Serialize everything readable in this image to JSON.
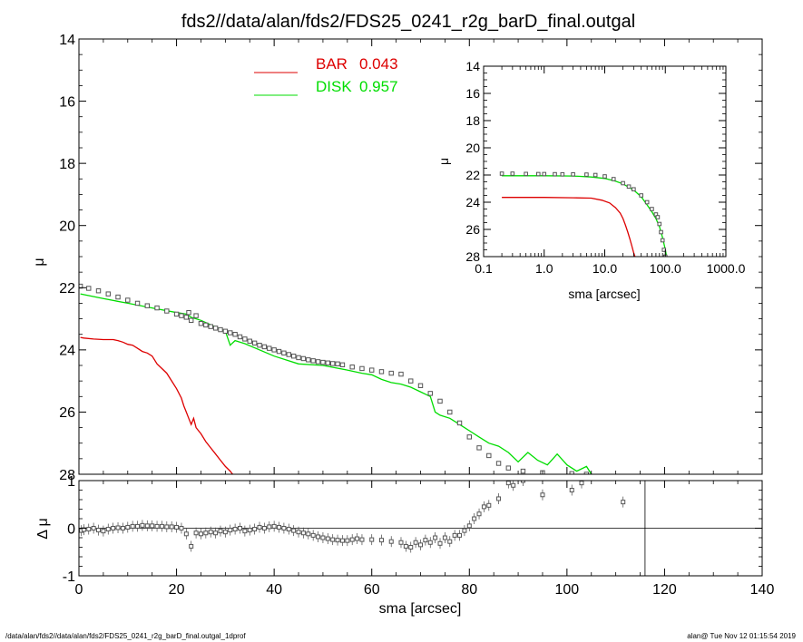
{
  "title": "fds2//data/alan/fds2/FDS25_0241_r2g_barD_final.outgal",
  "footer": {
    "left": "/data/alan/fds2//data/alan/fds2/FDS25_0241_r2g_barD_final.outgal_1dprof",
    "right": "alan@  Tue Nov 12 01:15:54 2019"
  },
  "colors": {
    "bar": "#dd0000",
    "disk": "#00dd00",
    "data": "#555555",
    "axis": "#000000"
  },
  "chart_data": [
    {
      "type": "line",
      "panel": "main",
      "xlabel": "",
      "ylabel": "μ",
      "xlim": [
        0,
        140
      ],
      "ylim": [
        28,
        14
      ],
      "x_ticks": [
        "0",
        "20",
        "40",
        "60",
        "80",
        "100",
        "120",
        "140"
      ],
      "y_ticks": [
        "14",
        "16",
        "18",
        "20",
        "22",
        "24",
        "26",
        "28"
      ],
      "legend": {
        "placement": "top-center",
        "entries": [
          {
            "label": "BAR",
            "value": "0.043",
            "color": "#dd0000"
          },
          {
            "label": "DISK",
            "value": "0.957",
            "color": "#00dd00"
          }
        ]
      },
      "series": [
        {
          "name": "BAR",
          "color": "#dd0000",
          "x": [
            0.3,
            1,
            3,
            5,
            6,
            7,
            8,
            9,
            10,
            11,
            12,
            13,
            14,
            15,
            16,
            17,
            18,
            19,
            20,
            21,
            21.5,
            22,
            22.5,
            23,
            23.5,
            24,
            25,
            26,
            27,
            28,
            29,
            30,
            31,
            31.5
          ],
          "y": [
            23.6,
            23.62,
            23.65,
            23.67,
            23.67,
            23.67,
            23.7,
            23.75,
            23.82,
            23.85,
            23.95,
            24.05,
            24.1,
            24.2,
            24.45,
            24.6,
            24.75,
            25.0,
            25.25,
            25.55,
            25.8,
            26.0,
            26.2,
            26.4,
            26.2,
            26.5,
            26.7,
            26.95,
            27.15,
            27.35,
            27.55,
            27.75,
            27.9,
            28.0
          ]
        },
        {
          "name": "DISK",
          "color": "#00dd00",
          "x": [
            0.3,
            5,
            10,
            15,
            20,
            22,
            23,
            25,
            30,
            31,
            32,
            34,
            40,
            45,
            50,
            55,
            58,
            60,
            62,
            64,
            66,
            68,
            70,
            72,
            73,
            74,
            76,
            78,
            80,
            82,
            84,
            86,
            88,
            90,
            92,
            94,
            96,
            98,
            100,
            102,
            104,
            105
          ],
          "y": [
            22.2,
            22.35,
            22.5,
            22.65,
            22.8,
            22.85,
            22.95,
            23.05,
            23.4,
            23.85,
            23.7,
            23.8,
            24.2,
            24.45,
            24.5,
            24.65,
            24.75,
            24.8,
            24.95,
            25.05,
            25.1,
            25.2,
            25.35,
            25.5,
            26.0,
            26.1,
            26.2,
            26.4,
            26.6,
            26.8,
            27.0,
            27.1,
            27.3,
            27.6,
            27.3,
            27.55,
            27.7,
            27.35,
            27.7,
            27.9,
            27.75,
            28.0
          ]
        },
        {
          "name": "",
          "color": "#555555",
          "marker": "square",
          "x": [
            0.3,
            2,
            4,
            6,
            8,
            10,
            12,
            14,
            16,
            18,
            20,
            21,
            22,
            22.5,
            23,
            24,
            25,
            26,
            27,
            28,
            29,
            30,
            31,
            32,
            33,
            34,
            35,
            36,
            37,
            38,
            39,
            40,
            41,
            42,
            43,
            44,
            45,
            46,
            47,
            48,
            49,
            50,
            51,
            52,
            53,
            54,
            56,
            58,
            60,
            62,
            64,
            66,
            68,
            70,
            72,
            74,
            76,
            78,
            80,
            82,
            84,
            86,
            88,
            91,
            95,
            101,
            104
          ],
          "y": [
            21.95,
            22.02,
            22.1,
            22.2,
            22.3,
            22.4,
            22.5,
            22.58,
            22.65,
            22.75,
            22.85,
            22.9,
            22.95,
            22.8,
            23.05,
            22.9,
            23.15,
            23.2,
            23.25,
            23.3,
            23.35,
            23.4,
            23.45,
            23.5,
            23.58,
            23.65,
            23.72,
            23.78,
            23.85,
            23.9,
            23.95,
            24.0,
            24.05,
            24.1,
            24.15,
            24.2,
            24.25,
            24.28,
            24.32,
            24.35,
            24.38,
            24.4,
            24.42,
            24.44,
            24.45,
            24.48,
            24.55,
            24.6,
            24.65,
            24.7,
            24.75,
            24.78,
            25.0,
            25.15,
            25.4,
            25.65,
            26.0,
            26.35,
            26.8,
            27.15,
            27.4,
            27.65,
            27.8,
            27.9,
            27.95,
            27.98,
            28.0
          ]
        }
      ]
    },
    {
      "type": "scatter",
      "panel": "residual",
      "xlabel": "sma [arcsec]",
      "ylabel": "Δ μ",
      "xlim": [
        0,
        140
      ],
      "ylim": [
        -1,
        1
      ],
      "x_ticks": [
        "0",
        "20",
        "40",
        "60",
        "80",
        "100",
        "120",
        "140"
      ],
      "y_ticks": [
        "-1",
        "0",
        "1"
      ],
      "zero_line": true,
      "vertical_line_x": 116,
      "series": [
        {
          "name": "",
          "color": "#555555",
          "marker": "square",
          "x": [
            0.5,
            1,
            2,
            3,
            4,
            5,
            6,
            7,
            8,
            9,
            10,
            11,
            12,
            13,
            14,
            15,
            16,
            17,
            18,
            19,
            20,
            21,
            22,
            23,
            24,
            25,
            26,
            27,
            28,
            29,
            30,
            31,
            32,
            33,
            34,
            35,
            36,
            37,
            38,
            39,
            40,
            41,
            42,
            43,
            44,
            45,
            46,
            47,
            48,
            49,
            50,
            51,
            52,
            53,
            54,
            55,
            56,
            57,
            58,
            60,
            62,
            64,
            66,
            67,
            68,
            69,
            70,
            71,
            72,
            73,
            74,
            75,
            76,
            77,
            78,
            79,
            80,
            81,
            82,
            83,
            84,
            86,
            88,
            89,
            91,
            95,
            101,
            103,
            111.5
          ],
          "y": [
            -0.05,
            -0.03,
            -0.02,
            0.0,
            -0.04,
            -0.06,
            -0.02,
            0.0,
            0.01,
            0.0,
            0.02,
            0.04,
            0.04,
            0.06,
            0.05,
            0.05,
            0.04,
            0.04,
            0.03,
            0.03,
            0.02,
            0.0,
            -0.12,
            -0.38,
            -0.1,
            -0.12,
            -0.1,
            -0.08,
            -0.1,
            -0.06,
            -0.08,
            -0.04,
            -0.02,
            0.0,
            -0.06,
            -0.04,
            -0.02,
            0.02,
            0.0,
            0.03,
            0.04,
            0.02,
            0.0,
            -0.02,
            -0.05,
            -0.08,
            -0.1,
            -0.12,
            -0.15,
            -0.18,
            -0.2,
            -0.22,
            -0.24,
            -0.25,
            -0.26,
            -0.26,
            -0.24,
            -0.22,
            -0.24,
            -0.24,
            -0.25,
            -0.28,
            -0.3,
            -0.38,
            -0.4,
            -0.3,
            -0.35,
            -0.25,
            -0.3,
            -0.2,
            -0.32,
            -0.2,
            -0.28,
            -0.15,
            -0.15,
            -0.05,
            0.05,
            0.2,
            0.3,
            0.45,
            0.48,
            0.62,
            0.95,
            0.9,
            1.0,
            0.7,
            0.8,
            0.95,
            0.55
          ]
        }
      ]
    },
    {
      "type": "line",
      "panel": "inset",
      "xlabel": "sma [arcsec]",
      "ylabel": "μ",
      "xscale": "log",
      "xlim": [
        0.1,
        1000
      ],
      "ylim": [
        28,
        14
      ],
      "x_ticks": [
        "0.1",
        "1.0",
        "10.0",
        "100.0",
        "1000.0"
      ],
      "y_ticks": [
        "14",
        "16",
        "18",
        "20",
        "22",
        "24",
        "26",
        "28"
      ],
      "series": [
        {
          "name": "",
          "color": "#dd0000",
          "x": [
            0.2,
            1,
            3,
            6,
            9,
            12,
            15,
            18,
            20,
            22,
            24,
            26,
            28,
            30,
            31.5
          ],
          "y": [
            23.65,
            23.65,
            23.67,
            23.7,
            23.85,
            24.05,
            24.4,
            24.8,
            25.2,
            25.7,
            26.2,
            26.7,
            27.2,
            27.7,
            28.0
          ]
        },
        {
          "name": "",
          "color": "#00dd00",
          "x": [
            0.2,
            1,
            3,
            6,
            10,
            15,
            20,
            30,
            40,
            50,
            60,
            70,
            80,
            90,
            100,
            105
          ],
          "y": [
            22.05,
            22.05,
            22.07,
            22.15,
            22.25,
            22.45,
            22.65,
            23.1,
            23.6,
            24.2,
            24.7,
            25.2,
            25.8,
            26.6,
            27.5,
            28.0
          ]
        },
        {
          "name": "",
          "color": "#555555",
          "marker": "square",
          "x": [
            0.2,
            0.3,
            0.5,
            0.8,
            1,
            1.5,
            2,
            3,
            5,
            7,
            10,
            14,
            20,
            25,
            30,
            40,
            50,
            60,
            70,
            75,
            80,
            85,
            90,
            95,
            100
          ],
          "y": [
            21.9,
            21.9,
            21.92,
            21.93,
            21.93,
            21.94,
            21.95,
            21.95,
            21.97,
            22.0,
            22.1,
            22.3,
            22.6,
            22.85,
            23.05,
            23.5,
            24.0,
            24.5,
            24.9,
            25.1,
            25.6,
            26.2,
            26.8,
            27.5,
            28.0
          ]
        }
      ]
    }
  ]
}
